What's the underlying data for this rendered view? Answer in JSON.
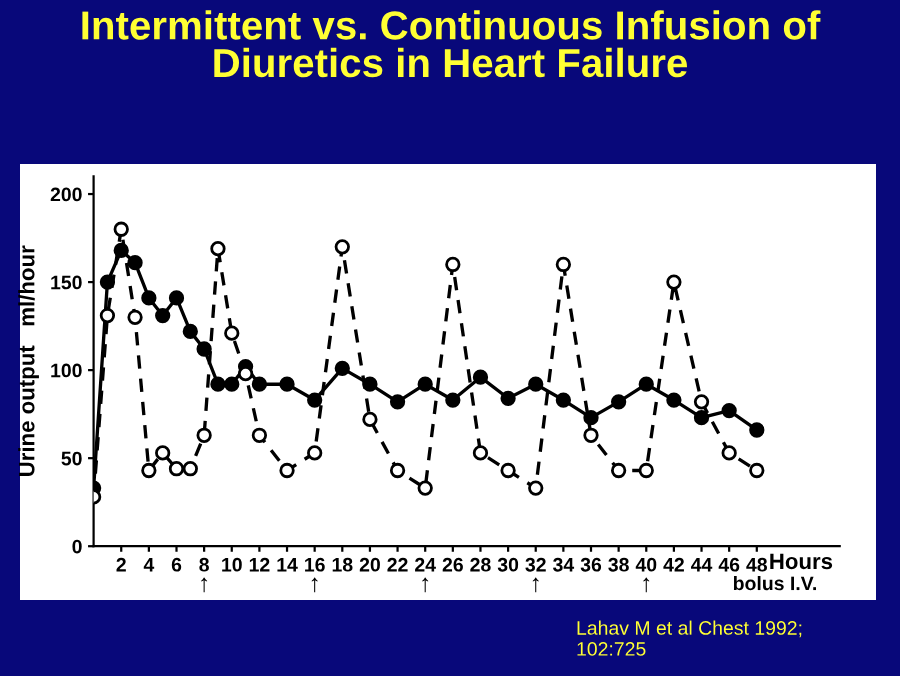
{
  "chart_data": {
    "type": "line",
    "title": "Intermittent vs. Continuous Infusion of\nDiuretics in Heart Failure",
    "xlabel": "Hours",
    "ylabel": "Urine output   ml/hour",
    "xlim": [
      0,
      54
    ],
    "xticks": [
      2,
      4,
      6,
      8,
      10,
      12,
      14,
      16,
      18,
      20,
      22,
      24,
      26,
      28,
      30,
      32,
      34,
      36,
      38,
      40,
      42,
      44,
      46,
      48
    ],
    "ylim": [
      0,
      210
    ],
    "yticks": [
      0,
      50,
      100,
      150,
      200
    ],
    "grid": false,
    "legend": false,
    "marker": "circle",
    "series": [
      {
        "color": "#000000",
        "line_style": "solid",
        "x": [
          0,
          1,
          2,
          3,
          4,
          5,
          6,
          7,
          8,
          9,
          10,
          11,
          12,
          14,
          16,
          18,
          20,
          22,
          24,
          26,
          28,
          30,
          32,
          34,
          36,
          38,
          40,
          42,
          44,
          46,
          48
        ],
        "values": [
          33,
          150,
          168,
          161,
          141,
          131,
          141,
          122,
          112,
          92,
          92,
          102,
          92,
          92,
          83,
          101,
          92,
          82,
          92,
          83,
          96,
          84,
          92,
          83,
          73,
          82,
          92,
          83,
          73,
          77,
          66
        ]
      },
      {
        "color": "#000000",
        "line_style": "dashed",
        "x": [
          0,
          1,
          2,
          3,
          4,
          5,
          6,
          7,
          8,
          9,
          10,
          11,
          12,
          14,
          16,
          18,
          20,
          22,
          24,
          26,
          28,
          30,
          32,
          34,
          36,
          38,
          40,
          42,
          44,
          46,
          48
        ],
        "values": [
          28,
          131,
          180,
          130,
          43,
          53,
          44,
          44,
          63,
          169,
          121,
          98,
          63,
          43,
          53,
          170,
          72,
          43,
          33,
          160,
          53,
          43,
          33,
          160,
          63,
          43,
          43,
          150,
          82,
          53,
          43
        ]
      }
    ],
    "annotations": [
      "↑",
      "↑",
      "↑",
      "↑",
      "↑",
      "bolus I.V.",
      "Lahav M et al Chest 1992;\n102:725"
    ]
  }
}
